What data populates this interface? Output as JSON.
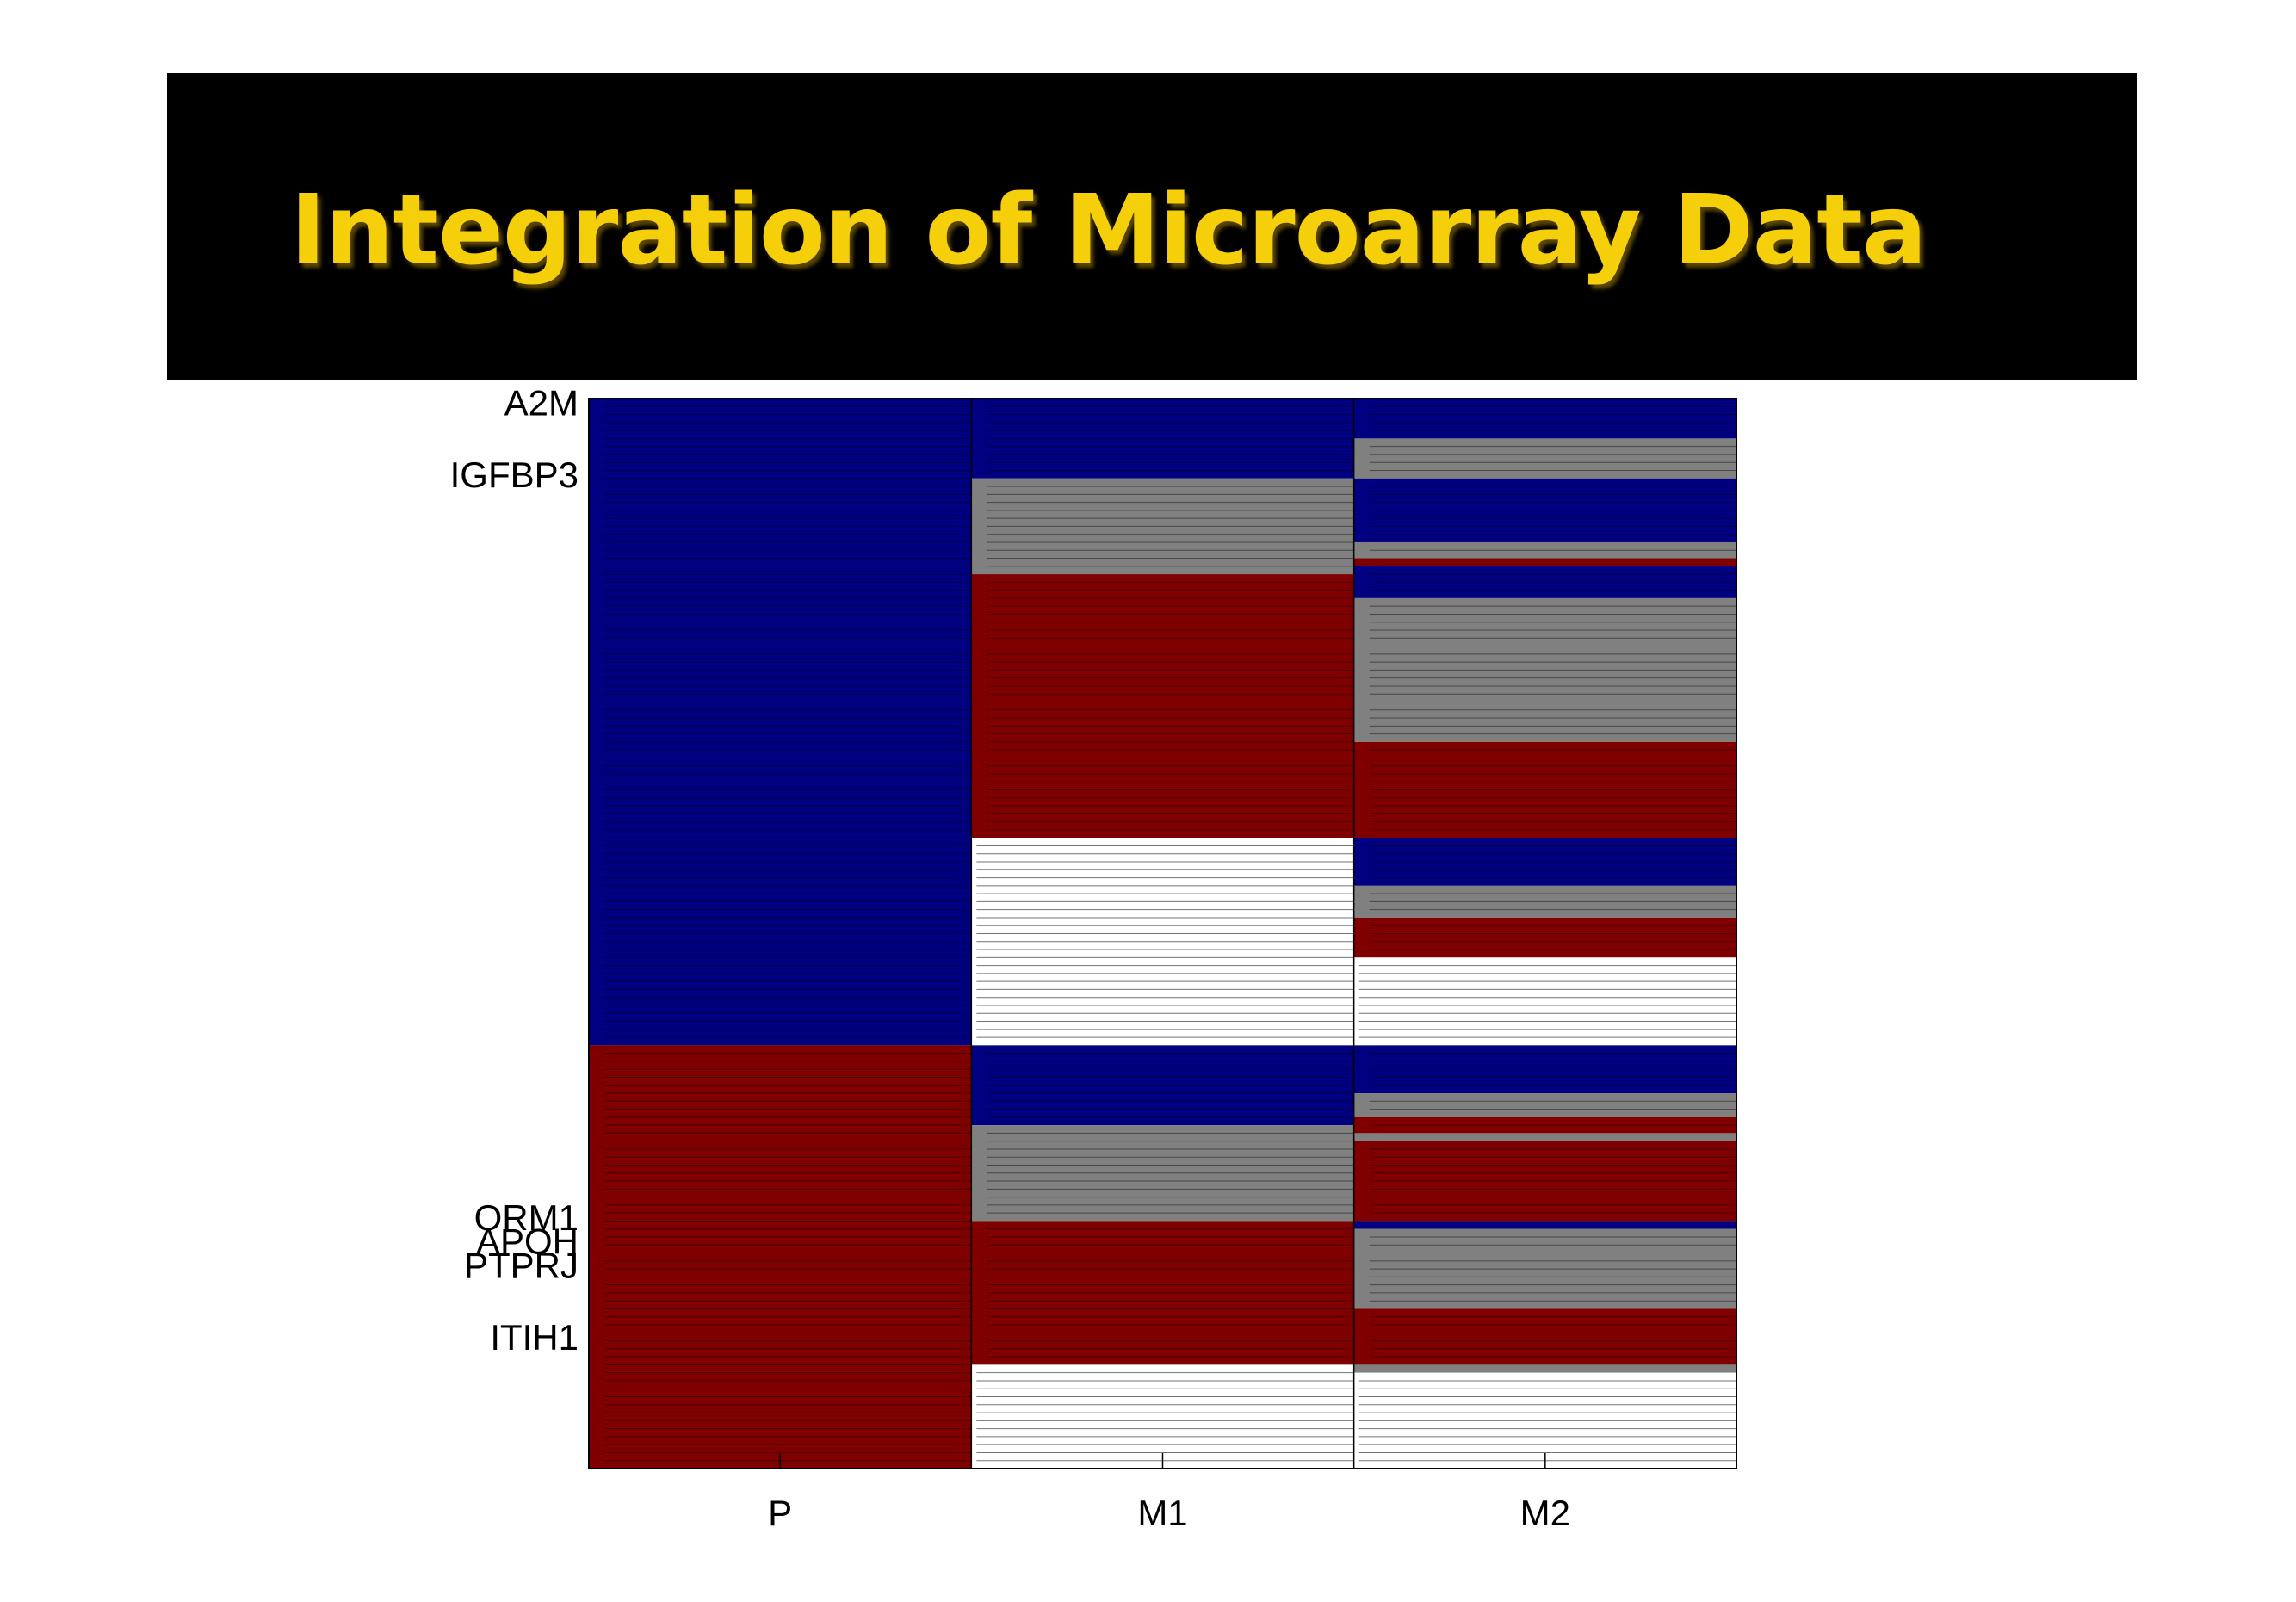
{
  "slide": {
    "title": "Integration of Microarray Data"
  },
  "colors": {
    "banner_background": "#000000",
    "title_text": "#f5cf0a",
    "blue": "#000080",
    "red": "#800000",
    "gray": "#808080",
    "white": "#ffffff",
    "row_line": "#000000"
  },
  "chart_data": {
    "type": "heatmap",
    "title": "",
    "xlabel": "",
    "ylabel": "",
    "categories": [
      "P",
      "M1",
      "M2"
    ],
    "grid": false,
    "row_count": 134,
    "row_labels": [
      {
        "label": "A2M",
        "row": 0
      },
      {
        "label": "IGFBP3",
        "row": 9
      },
      {
        "label": "ORM1",
        "row": 102
      },
      {
        "label": "APOH",
        "row": 105
      },
      {
        "label": "PTPRJ",
        "row": 108
      },
      {
        "label": "ITIH1",
        "row": 117
      }
    ],
    "columns": [
      {
        "name": "P",
        "segments": [
          {
            "start": 0,
            "end": 81,
            "value": "blue"
          },
          {
            "start": 81,
            "end": 134,
            "value": "red"
          }
        ]
      },
      {
        "name": "M1",
        "segments": [
          {
            "start": 0,
            "end": 10,
            "value": "blue"
          },
          {
            "start": 10,
            "end": 22,
            "value": "gray"
          },
          {
            "start": 22,
            "end": 55,
            "value": "red"
          },
          {
            "start": 55,
            "end": 81,
            "value": "white"
          },
          {
            "start": 81,
            "end": 91,
            "value": "blue"
          },
          {
            "start": 91,
            "end": 103,
            "value": "gray"
          },
          {
            "start": 103,
            "end": 121,
            "value": "red"
          },
          {
            "start": 121,
            "end": 134,
            "value": "white"
          }
        ]
      },
      {
        "name": "M2",
        "segments": [
          {
            "start": 0,
            "end": 5,
            "value": "blue"
          },
          {
            "start": 5,
            "end": 10,
            "value": "gray"
          },
          {
            "start": 10,
            "end": 18,
            "value": "blue"
          },
          {
            "start": 18,
            "end": 20,
            "value": "gray"
          },
          {
            "start": 20,
            "end": 21,
            "value": "red"
          },
          {
            "start": 21,
            "end": 25,
            "value": "blue"
          },
          {
            "start": 25,
            "end": 43,
            "value": "gray"
          },
          {
            "start": 43,
            "end": 55,
            "value": "red"
          },
          {
            "start": 55,
            "end": 61,
            "value": "blue"
          },
          {
            "start": 61,
            "end": 65,
            "value": "gray"
          },
          {
            "start": 65,
            "end": 70,
            "value": "red"
          },
          {
            "start": 70,
            "end": 81,
            "value": "white"
          },
          {
            "start": 81,
            "end": 87,
            "value": "blue"
          },
          {
            "start": 87,
            "end": 90,
            "value": "gray"
          },
          {
            "start": 90,
            "end": 92,
            "value": "red"
          },
          {
            "start": 92,
            "end": 93,
            "value": "gray"
          },
          {
            "start": 93,
            "end": 103,
            "value": "red"
          },
          {
            "start": 103,
            "end": 104,
            "value": "blue"
          },
          {
            "start": 104,
            "end": 114,
            "value": "gray"
          },
          {
            "start": 114,
            "end": 121,
            "value": "red"
          },
          {
            "start": 121,
            "end": 122,
            "value": "gray"
          },
          {
            "start": 122,
            "end": 134,
            "value": "white"
          }
        ]
      }
    ]
  }
}
